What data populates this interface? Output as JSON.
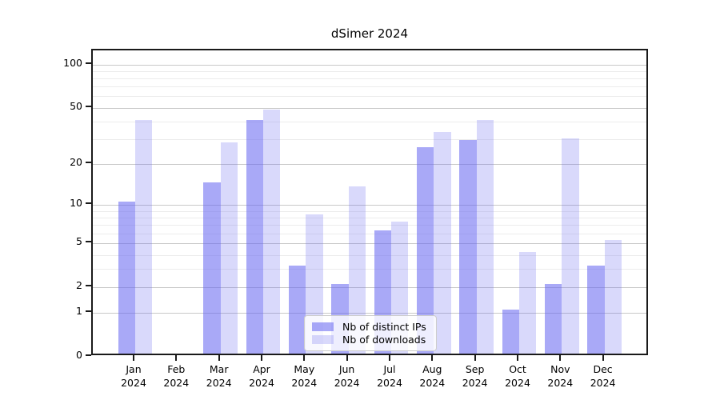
{
  "title": "dSimer 2024",
  "chart_data": {
    "type": "bar",
    "title": "dSimer 2024",
    "categories": [
      "Jan 2024",
      "Feb 2024",
      "Mar 2024",
      "Apr 2024",
      "May 2024",
      "Jun 2024",
      "Jul 2024",
      "Aug 2024",
      "Sep 2024",
      "Oct 2024",
      "Nov 2024",
      "Dec 2024"
    ],
    "month_labels": [
      "Jan",
      "Feb",
      "Mar",
      "Apr",
      "May",
      "Jun",
      "Jul",
      "Aug",
      "Sep",
      "Oct",
      "Nov",
      "Dec"
    ],
    "year_label": "2024",
    "series": [
      {
        "name": "Nb of distinct IPs",
        "values": [
          10,
          0,
          14,
          39,
          3,
          2,
          6,
          25,
          28,
          1,
          2,
          3
        ],
        "color": "rgba(102,102,241,0.56)"
      },
      {
        "name": "Nb of downloads",
        "values": [
          39,
          0,
          27,
          46,
          8,
          13,
          7,
          32,
          39,
          4,
          29,
          5
        ],
        "color": "rgba(102,102,241,0.25)"
      }
    ],
    "yscale": "log1p",
    "ylim": [
      0,
      124
    ],
    "yticks": {
      "values": [
        0,
        1,
        2,
        5,
        10,
        20,
        50,
        100
      ],
      "labels": [
        "0",
        "1",
        "2",
        "5",
        "10",
        "20",
        "50",
        "100"
      ]
    },
    "yminor_values": [
      3,
      4,
      6,
      7,
      8,
      9,
      30,
      40,
      60,
      70,
      80,
      90
    ],
    "grid": {
      "major_color": "#c8c8c8",
      "minor_color": "#ececec",
      "orientation": "horizontal"
    },
    "legend": {
      "position": "lower center",
      "labels": [
        "Nb of distinct IPs",
        "Nb of downloads"
      ]
    }
  }
}
